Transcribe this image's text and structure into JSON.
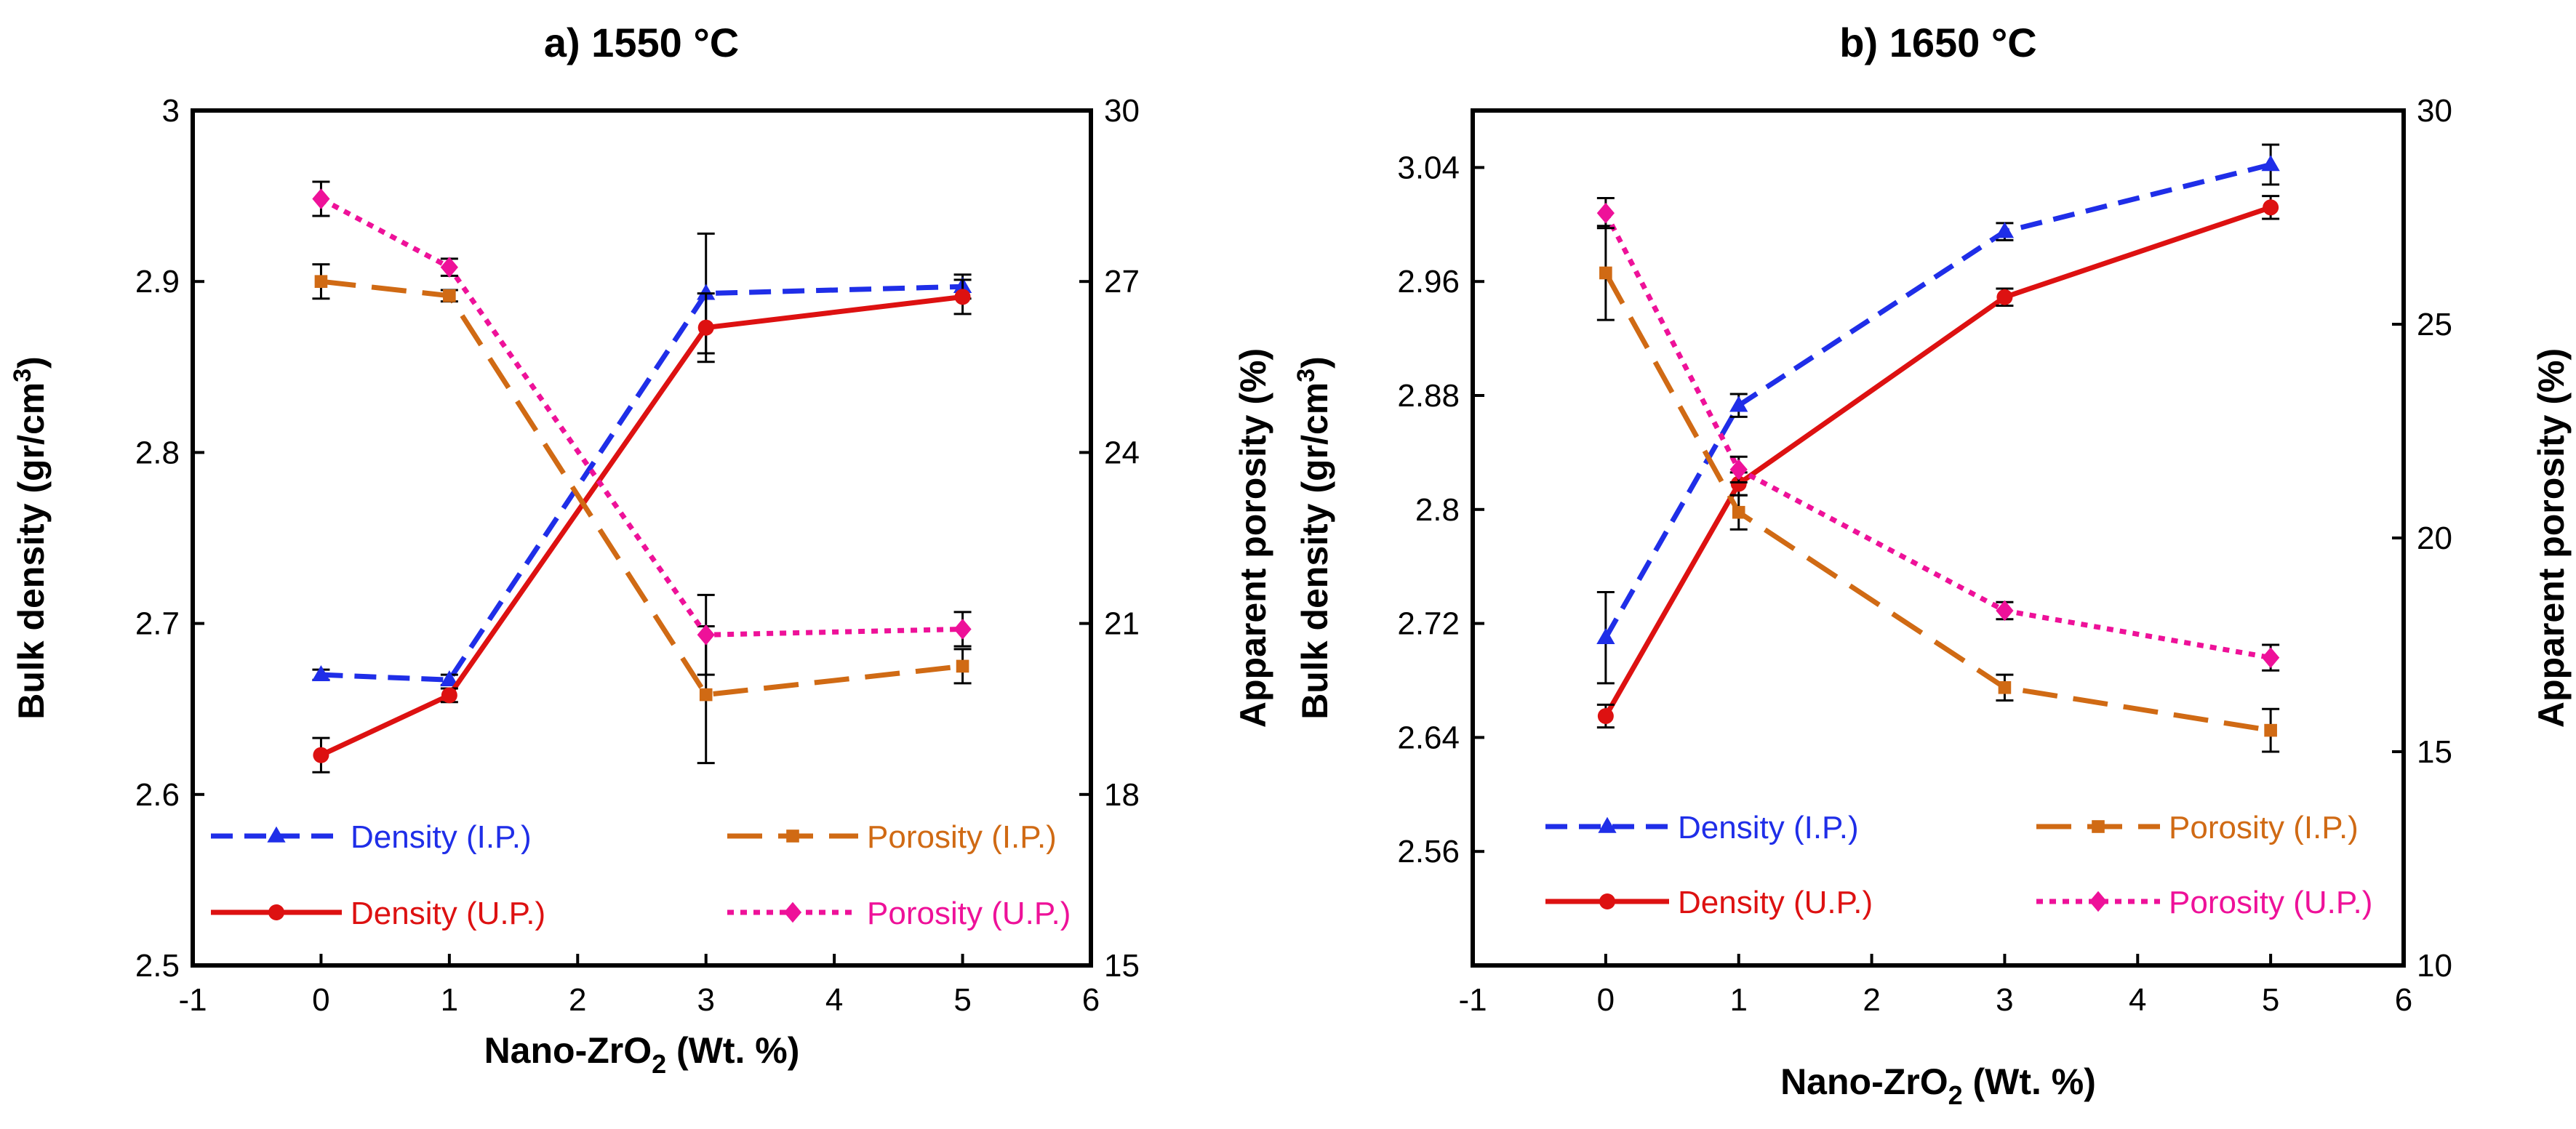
{
  "chart_data": [
    {
      "id": "a",
      "type": "line",
      "title": "a) 1550 °C",
      "xlabel": "Nano-ZrO",
      "xlabel_sub": "2",
      "xlabel_tail": " (Wt. %)",
      "ylabel": "Bulk density (gr/cm",
      "ylabel_sup": "3",
      "ylabel_tail": ")",
      "y2label": "Apparent porosity (%)",
      "xlim": [
        -1,
        6
      ],
      "ylim": [
        2.5,
        3.0
      ],
      "y2lim": [
        15,
        30
      ],
      "xticks": [
        "-1",
        "0",
        "1",
        "2",
        "3",
        "4",
        "5",
        "6"
      ],
      "yticks": [
        "2.5",
        "2.6",
        "2.7",
        "2.8",
        "2.9",
        "3"
      ],
      "y2ticks": [
        "15",
        "18",
        "21",
        "24",
        "27",
        "30"
      ],
      "x": [
        0,
        1,
        3,
        5
      ],
      "series": [
        {
          "name": "Density  (I.P.)",
          "axis": "left",
          "color": "#1f2ee8",
          "style": "dashed",
          "marker": "triangle",
          "values": [
            2.67,
            2.667,
            2.893,
            2.897
          ],
          "errors": [
            0.003,
            0.003,
            0.035,
            0.007
          ]
        },
        {
          "name": "Density (U.P.)",
          "axis": "left",
          "color": "#dd1111",
          "style": "solid",
          "marker": "circle",
          "values": [
            2.623,
            2.658,
            2.873,
            2.891
          ],
          "errors": [
            0.01,
            0.004,
            0.02,
            0.01
          ]
        },
        {
          "name": "Porosity (I.P.)",
          "axis": "right",
          "color": "#d06a14",
          "style": "longdash",
          "marker": "square",
          "values": [
            27.0,
            26.75,
            19.75,
            20.25
          ],
          "errors": [
            0.3,
            0.1,
            1.2,
            0.3
          ]
        },
        {
          "name": "Porosity (U.P.)",
          "axis": "right",
          "color": "#ee1199",
          "style": "dotted",
          "marker": "diamond",
          "values": [
            28.45,
            27.25,
            20.8,
            20.9
          ],
          "errors": [
            0.3,
            0.15,
            0.7,
            0.3
          ]
        }
      ]
    },
    {
      "id": "b",
      "type": "line",
      "title": "b) 1650 °C",
      "xlabel": "Nano-ZrO",
      "xlabel_sub": "2",
      "xlabel_tail": " (Wt. %)",
      "ylabel": "Bulk density (gr/cm",
      "ylabel_sup": "3",
      "ylabel_tail": ")",
      "y2label": "Apparent porosity (%)",
      "xlim": [
        -1,
        6
      ],
      "ylim": [
        2.48,
        3.08
      ],
      "y2lim": [
        10,
        30
      ],
      "xticks": [
        "-1",
        "0",
        "1",
        "2",
        "3",
        "4",
        "5",
        "6"
      ],
      "yticks": [
        "2.56",
        "2.64",
        "2.72",
        "2.8",
        "2.88",
        "2.96",
        "3.04"
      ],
      "y2ticks": [
        "10",
        "15",
        "20",
        "25",
        "30"
      ],
      "x": [
        0,
        1,
        3,
        5
      ],
      "series": [
        {
          "name": "Density (I.P.)",
          "axis": "left",
          "color": "#1f2ee8",
          "style": "dashed",
          "marker": "triangle",
          "values": [
            2.71,
            2.873,
            2.995,
            3.042
          ],
          "errors": [
            0.032,
            0.008,
            0.006,
            0.014
          ]
        },
        {
          "name": "Density (U.P.)",
          "axis": "left",
          "color": "#dd1111",
          "style": "solid",
          "marker": "circle",
          "values": [
            2.655,
            2.818,
            2.949,
            3.012
          ],
          "errors": [
            0.008,
            0.008,
            0.006,
            0.008
          ]
        },
        {
          "name": "Porosity (I.P.)",
          "axis": "right",
          "color": "#d06a14",
          "style": "longdash",
          "marker": "square",
          "values": [
            26.2,
            20.6,
            16.5,
            15.5
          ],
          "errors": [
            1.1,
            0.4,
            0.3,
            0.5
          ]
        },
        {
          "name": "Porosity (U.P.)",
          "axis": "right",
          "color": "#ee1199",
          "style": "dotted",
          "marker": "diamond",
          "values": [
            27.6,
            21.6,
            18.3,
            17.2
          ],
          "errors": [
            0.35,
            0.3,
            0.2,
            0.3
          ]
        }
      ]
    }
  ]
}
